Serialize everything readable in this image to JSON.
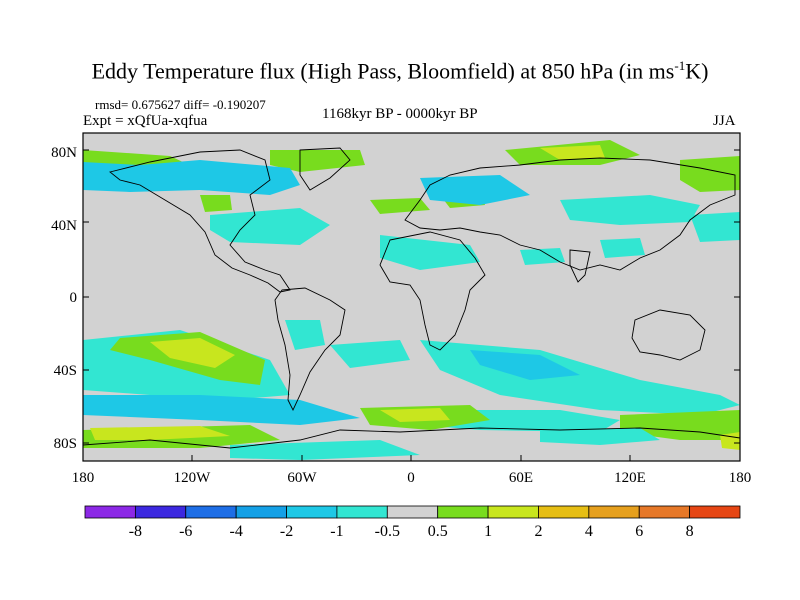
{
  "title": {
    "main": "Eddy Temperature flux (High Pass, Bloomfield) at 850 hPa (in ms",
    "sup": "-1",
    "end": "K)"
  },
  "stats": {
    "rmsd_text": "rmsd= 0.675627 diff= -0.190207",
    "expt_text": "Expt = xQfUa-xqfua",
    "period_text": "1168kyr BP - 0000kyr BP",
    "season": "JJA"
  },
  "axes": {
    "lat_ticks": [
      "80N",
      "40N",
      "0",
      "40S",
      "80S"
    ],
    "lon_ticks": [
      "180",
      "120W",
      "60W",
      "0",
      "60E",
      "120E",
      "180"
    ]
  },
  "colorbar": {
    "colors": [
      "#8c28e6",
      "#3c28e0",
      "#1e6ee6",
      "#14a0e6",
      "#1ec8e6",
      "#32e6d2",
      "#d2d2d2",
      "#78dc1e",
      "#c8e61e",
      "#e6be14",
      "#e6a01e",
      "#e67828",
      "#e64614"
    ],
    "labels": [
      "-8",
      "-6",
      "-4",
      "-2",
      "-1",
      "-0.5",
      "0.5",
      "1",
      "2",
      "4",
      "6",
      "8"
    ]
  },
  "field_colors": {
    "background": "#d2d2d2",
    "neg_light": "#32e6d2",
    "neg_mid": "#1ec8e6",
    "neg_strong": "#14a0e6",
    "pos_light": "#78dc1e",
    "pos_mid": "#c8e61e",
    "pos_strong": "#e6be14",
    "pos_max": "#e6a01e"
  }
}
